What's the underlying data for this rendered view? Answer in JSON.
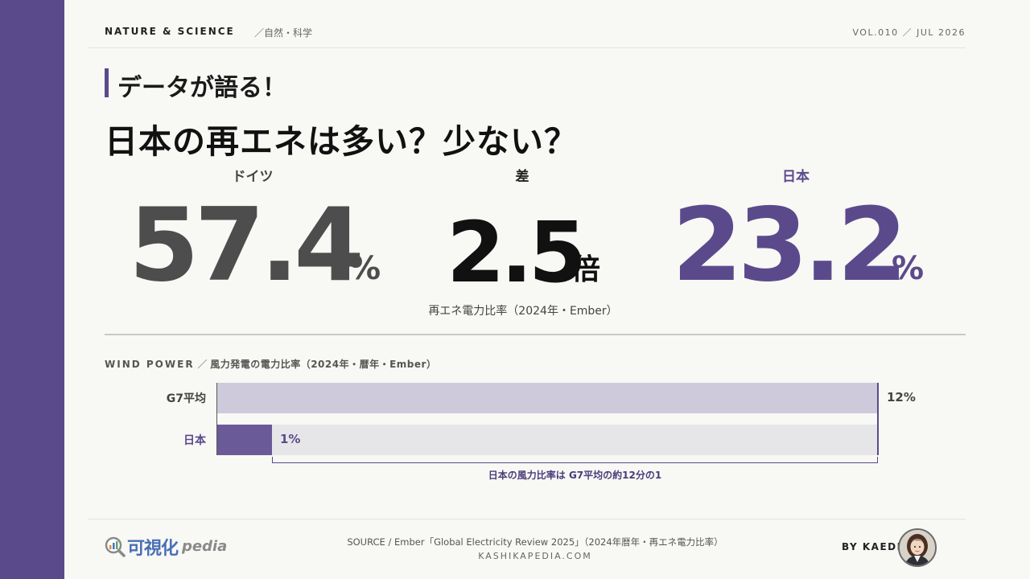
{
  "colors": {
    "accent": "#5b4a8b",
    "germany": "#4d4d4d",
    "ratio": "#111111",
    "japan": "#5b4a8b",
    "g7_bar": "#cfcadb",
    "japan_bar": "#6a5a98",
    "track": "#e6e5e8"
  },
  "header": {
    "brand": "NATURE & SCIENCE",
    "category": "／自然・科学",
    "volume": "VOL.010 ／ JUL 2026"
  },
  "kicker": "データが語る！",
  "headline": "日本の再エネは多い？少ない？",
  "stats": {
    "germany": {
      "label": "ドイツ",
      "value": "57.4",
      "unit": "%"
    },
    "ratio": {
      "label": "差",
      "value": "2.5",
      "unit": "倍"
    },
    "japan": {
      "label": "日本",
      "value": "23.2",
      "unit": "%"
    },
    "caption": "再エネ電力比率（2024年・Ember）"
  },
  "wind": {
    "title_en": "WIND POWER",
    "title_sep": " ／ ",
    "title_jp": "風力発電の電力比率（2024年・暦年・Ember）",
    "note": "日本の風力比率は G7平均の約12分の1"
  },
  "chart_data": {
    "type": "bar",
    "orientation": "horizontal",
    "categories": [
      "G7平均",
      "日本"
    ],
    "values": [
      12,
      1
    ],
    "value_labels": [
      "12%",
      "1%"
    ],
    "unit": "%",
    "xlim": [
      0,
      12
    ]
  },
  "footer": {
    "logo_main": "可視化",
    "logo_sub": "pedia",
    "source": "SOURCE / Ember「Global Electricity Review 2025」（2024年暦年・再エネ電力比率）",
    "site": "KASHIKAPEDIA.COM",
    "byline": "BY KAEDE"
  }
}
